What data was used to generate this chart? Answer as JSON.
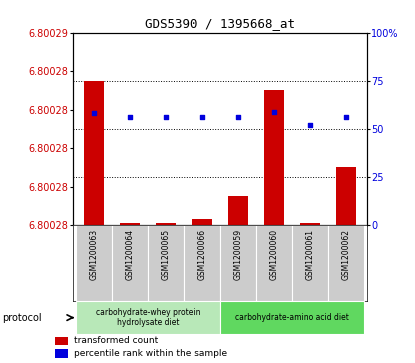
{
  "title": "GDS5390 / 1395668_at",
  "samples": [
    "GSM1200063",
    "GSM1200064",
    "GSM1200065",
    "GSM1200066",
    "GSM1200059",
    "GSM1200060",
    "GSM1200061",
    "GSM1200062"
  ],
  "red_values": [
    6.8002875,
    6.8002801,
    6.8002801,
    6.8002803,
    6.8002815,
    6.800287,
    6.8002801,
    6.800283
  ],
  "blue_values": [
    58,
    56,
    56,
    56,
    56,
    59,
    52,
    56
  ],
  "y_min": 6.80028,
  "y_max": 6.80029,
  "left_yticks": [
    6.80028,
    6.800282,
    6.800284,
    6.800286,
    6.800288,
    6.80029
  ],
  "left_ytick_labels": [
    "6.80028",
    "6.80028",
    "6.80028",
    "6.80028",
    "6.80028",
    "6.80029"
  ],
  "right_yticks": [
    0,
    25,
    50,
    75,
    100
  ],
  "right_ytick_labels": [
    "0",
    "25",
    "50",
    "75",
    "100%"
  ],
  "dotted_pct": [
    25,
    50,
    75
  ],
  "protocol_groups": [
    {
      "label": "carbohydrate-whey protein\nhydrolysate diet",
      "n_samples": 4,
      "color": "#b8e8b8"
    },
    {
      "label": "carbohydrate-amino acid diet",
      "n_samples": 4,
      "color": "#60d860"
    }
  ],
  "red_color": "#cc0000",
  "blue_color": "#0000dd",
  "bar_base": 6.80028,
  "background_plot": "#ffffff",
  "background_label": "#cccccc",
  "title_fontsize": 9
}
